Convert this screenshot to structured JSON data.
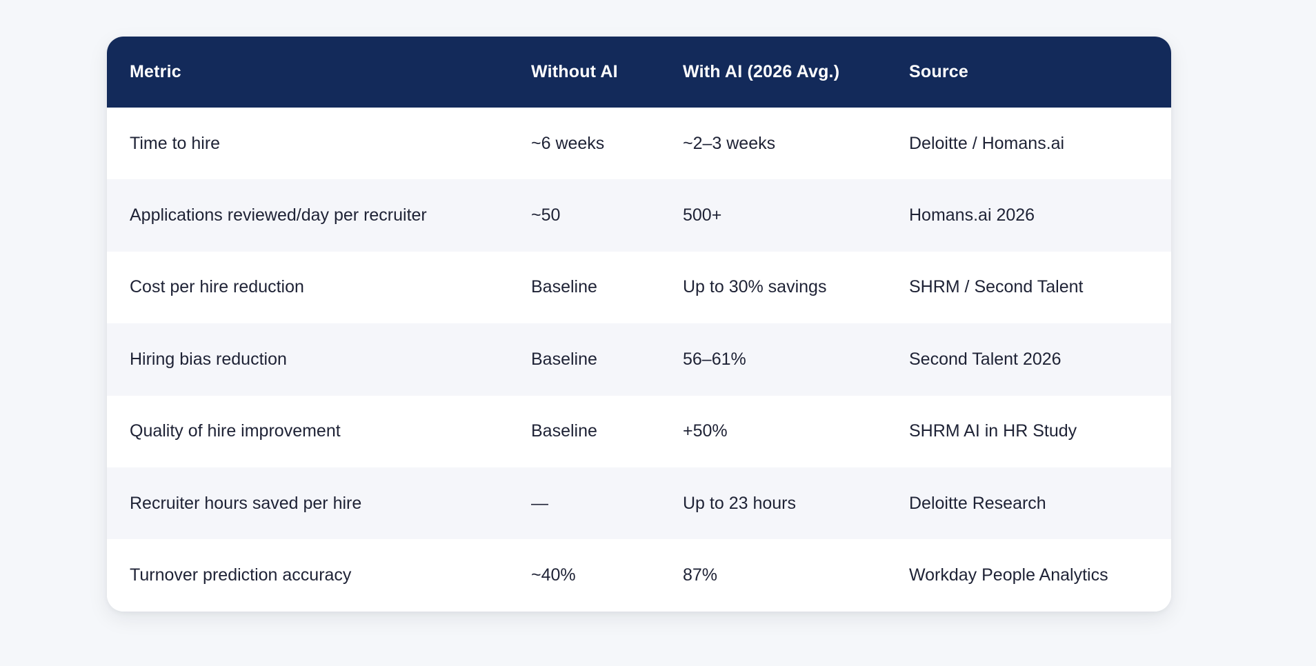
{
  "colors": {
    "page_background": "#f5f7fa",
    "card_background": "#ffffff",
    "header_background": "#132a5a",
    "header_text": "#ffffff",
    "body_text": "#1e2235",
    "alt_row_background": "#f5f6fa"
  },
  "table": {
    "columns": [
      "Metric",
      "Without AI",
      "With AI (2026 Avg.)",
      "Source"
    ],
    "rows": [
      [
        "Time to hire",
        "~6 weeks",
        "~2–3 weeks",
        "Deloitte / Homans.ai"
      ],
      [
        "Applications reviewed/day per recruiter",
        "~50",
        "500+",
        "Homans.ai 2026"
      ],
      [
        "Cost per hire reduction",
        "Baseline",
        "Up to 30% savings",
        "SHRM / Second Talent"
      ],
      [
        "Hiring bias reduction",
        "Baseline",
        "56–61%",
        "Second Talent 2026"
      ],
      [
        "Quality of hire improvement",
        "Baseline",
        "+50%",
        "SHRM AI in HR Study"
      ],
      [
        "Recruiter hours saved per hire",
        "—",
        "Up to 23 hours",
        "Deloitte Research"
      ],
      [
        "Turnover prediction accuracy",
        "~40%",
        "87%",
        "Workday People Analytics"
      ]
    ]
  }
}
